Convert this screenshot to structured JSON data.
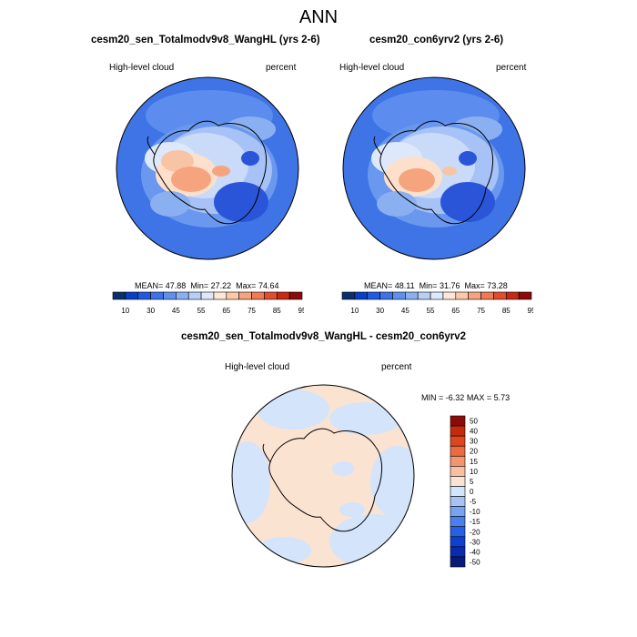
{
  "main_title": "ANN",
  "panels": [
    {
      "title": "cesm20_sen_Totalmodv9v8_WangHL (yrs 2-6)",
      "variable": "High-level cloud",
      "units": "percent",
      "stats": {
        "mean_label": "MEAN=",
        "mean": "47.88",
        "min_label": "Min=",
        "min": "27.22",
        "max_label": "Max=",
        "max": "74.64"
      }
    },
    {
      "title": "cesm20_con6yrv2 (yrs 2-6)",
      "variable": "High-level cloud",
      "units": "percent",
      "stats": {
        "mean_label": "MEAN=",
        "mean": "48.11",
        "min_label": "Min=",
        "min": "31.76",
        "max_label": "Max=",
        "max": "73.28"
      }
    }
  ],
  "difference": {
    "title": "cesm20_sen_Totalmodv9v8_WangHL - cesm20_con6yrv2",
    "variable": "High-level cloud",
    "units": "percent",
    "min_label": "MIN =",
    "min": "-6.32",
    "max_label": "MAX =",
    "max": "5.73"
  },
  "colorbar_top": {
    "colors": [
      "#08306b",
      "#0a3ec4",
      "#1f5ae0",
      "#3d72ea",
      "#6090ee",
      "#8ab0f2",
      "#b8cff7",
      "#dde9fb",
      "#fde8d8",
      "#fbc9a8",
      "#f6a47e",
      "#ee7a56",
      "#e04e30",
      "#c52a14",
      "#8c0a0a"
    ],
    "labels": [
      "10",
      "30",
      "45",
      "55",
      "65",
      "75",
      "85",
      "95"
    ]
  },
  "colorbar_diff": {
    "colors": [
      "#0a1a7a",
      "#0a2ab0",
      "#1040d0",
      "#2560e6",
      "#4a80ee",
      "#78a2f2",
      "#a6c2f6",
      "#d4e4fa",
      "#fbe3d2",
      "#f8c0a0",
      "#f4956d",
      "#ec6a42",
      "#e0461e",
      "#c42a0c",
      "#8c0a0a"
    ],
    "labels": [
      "50",
      "40",
      "30",
      "20",
      "15",
      "10",
      "5",
      "0",
      "-5",
      "-10",
      "-15",
      "-20",
      "-30",
      "-40",
      "-50"
    ]
  }
}
